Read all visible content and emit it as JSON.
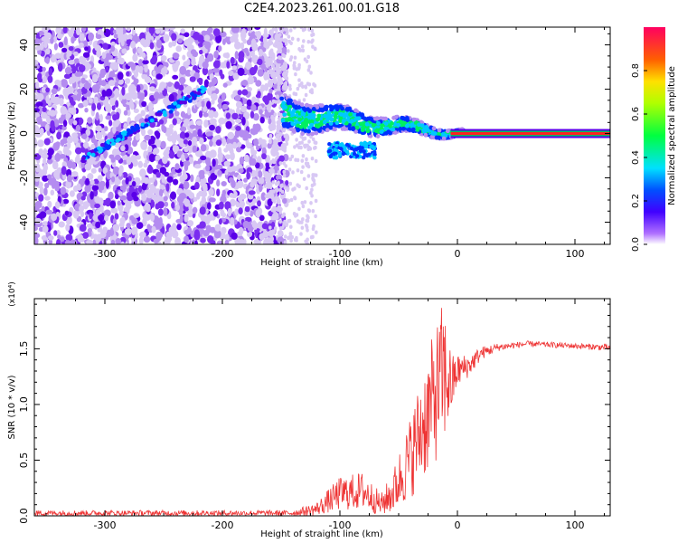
{
  "page_title": "C2E4.2023.261.00.01.G18",
  "colorbar": {
    "label": "Normalized spectral amplitude",
    "ticks": [
      "0.0",
      "0.2",
      "0.4",
      "0.6",
      "0.8"
    ],
    "tick_values": [
      0.0,
      0.2,
      0.4,
      0.6,
      0.8
    ],
    "range": [
      0,
      1
    ]
  },
  "chart_data": [
    {
      "type": "heatmap",
      "title": "",
      "xlabel": "Height of straight line (km)",
      "ylabel": "Frequency (Hz)",
      "xlim": [
        -360,
        130
      ],
      "ylim": [
        -50,
        48
      ],
      "xticks": [
        -300,
        -200,
        -100,
        0,
        100
      ],
      "xtick_labels": [
        "-300",
        "-200",
        "-100",
        "0",
        "100"
      ],
      "yticks": [
        -40,
        -20,
        0,
        20,
        40
      ],
      "ytick_labels": [
        "-40",
        "-20",
        "0",
        "20",
        "40"
      ],
      "features": [
        {
          "name": "diagonal trace",
          "x": [
            -320,
            -215
          ],
          "y": [
            -12,
            20
          ]
        },
        {
          "name": "central band",
          "x": [
            -150,
            5
          ],
          "y": [
            9,
            0
          ]
        },
        {
          "name": "flat line",
          "x": [
            5,
            130
          ],
          "y": [
            0,
            0
          ]
        }
      ]
    },
    {
      "type": "line",
      "title": "",
      "xlabel": "Height of straight line (km)",
      "ylabel": "SNR (10 * v/v)",
      "y_multiplier": "(x10⁴)",
      "xlim": [
        -360,
        130
      ],
      "ylim": [
        0,
        1.95
      ],
      "xticks": [
        -300,
        -200,
        -100,
        0,
        100
      ],
      "xtick_labels": [
        "-300",
        "-200",
        "-100",
        "0",
        "100"
      ],
      "yticks": [
        0.0,
        0.5,
        1.0,
        1.5
      ],
      "ytick_labels": [
        "0.0",
        "0.5",
        "1.0",
        "1.5"
      ],
      "line_color": "#ee3333",
      "envelope": {
        "x": [
          -360,
          -200,
          -140,
          -120,
          -100,
          -80,
          -65,
          -55,
          -40,
          -30,
          -20,
          -12,
          -5,
          0,
          10,
          20,
          35,
          60,
          100,
          130
        ],
        "lo": [
          0.0,
          0.0,
          0.0,
          0.0,
          0.05,
          0.05,
          0.0,
          0.02,
          0.15,
          0.3,
          0.45,
          0.6,
          0.9,
          1.15,
          1.25,
          1.4,
          1.48,
          1.52,
          1.5,
          1.48
        ],
        "hi": [
          0.05,
          0.05,
          0.05,
          0.12,
          0.35,
          0.4,
          0.2,
          0.4,
          0.9,
          1.3,
          1.65,
          1.95,
          1.45,
          1.45,
          1.45,
          1.52,
          1.55,
          1.57,
          1.55,
          1.54
        ]
      }
    }
  ]
}
